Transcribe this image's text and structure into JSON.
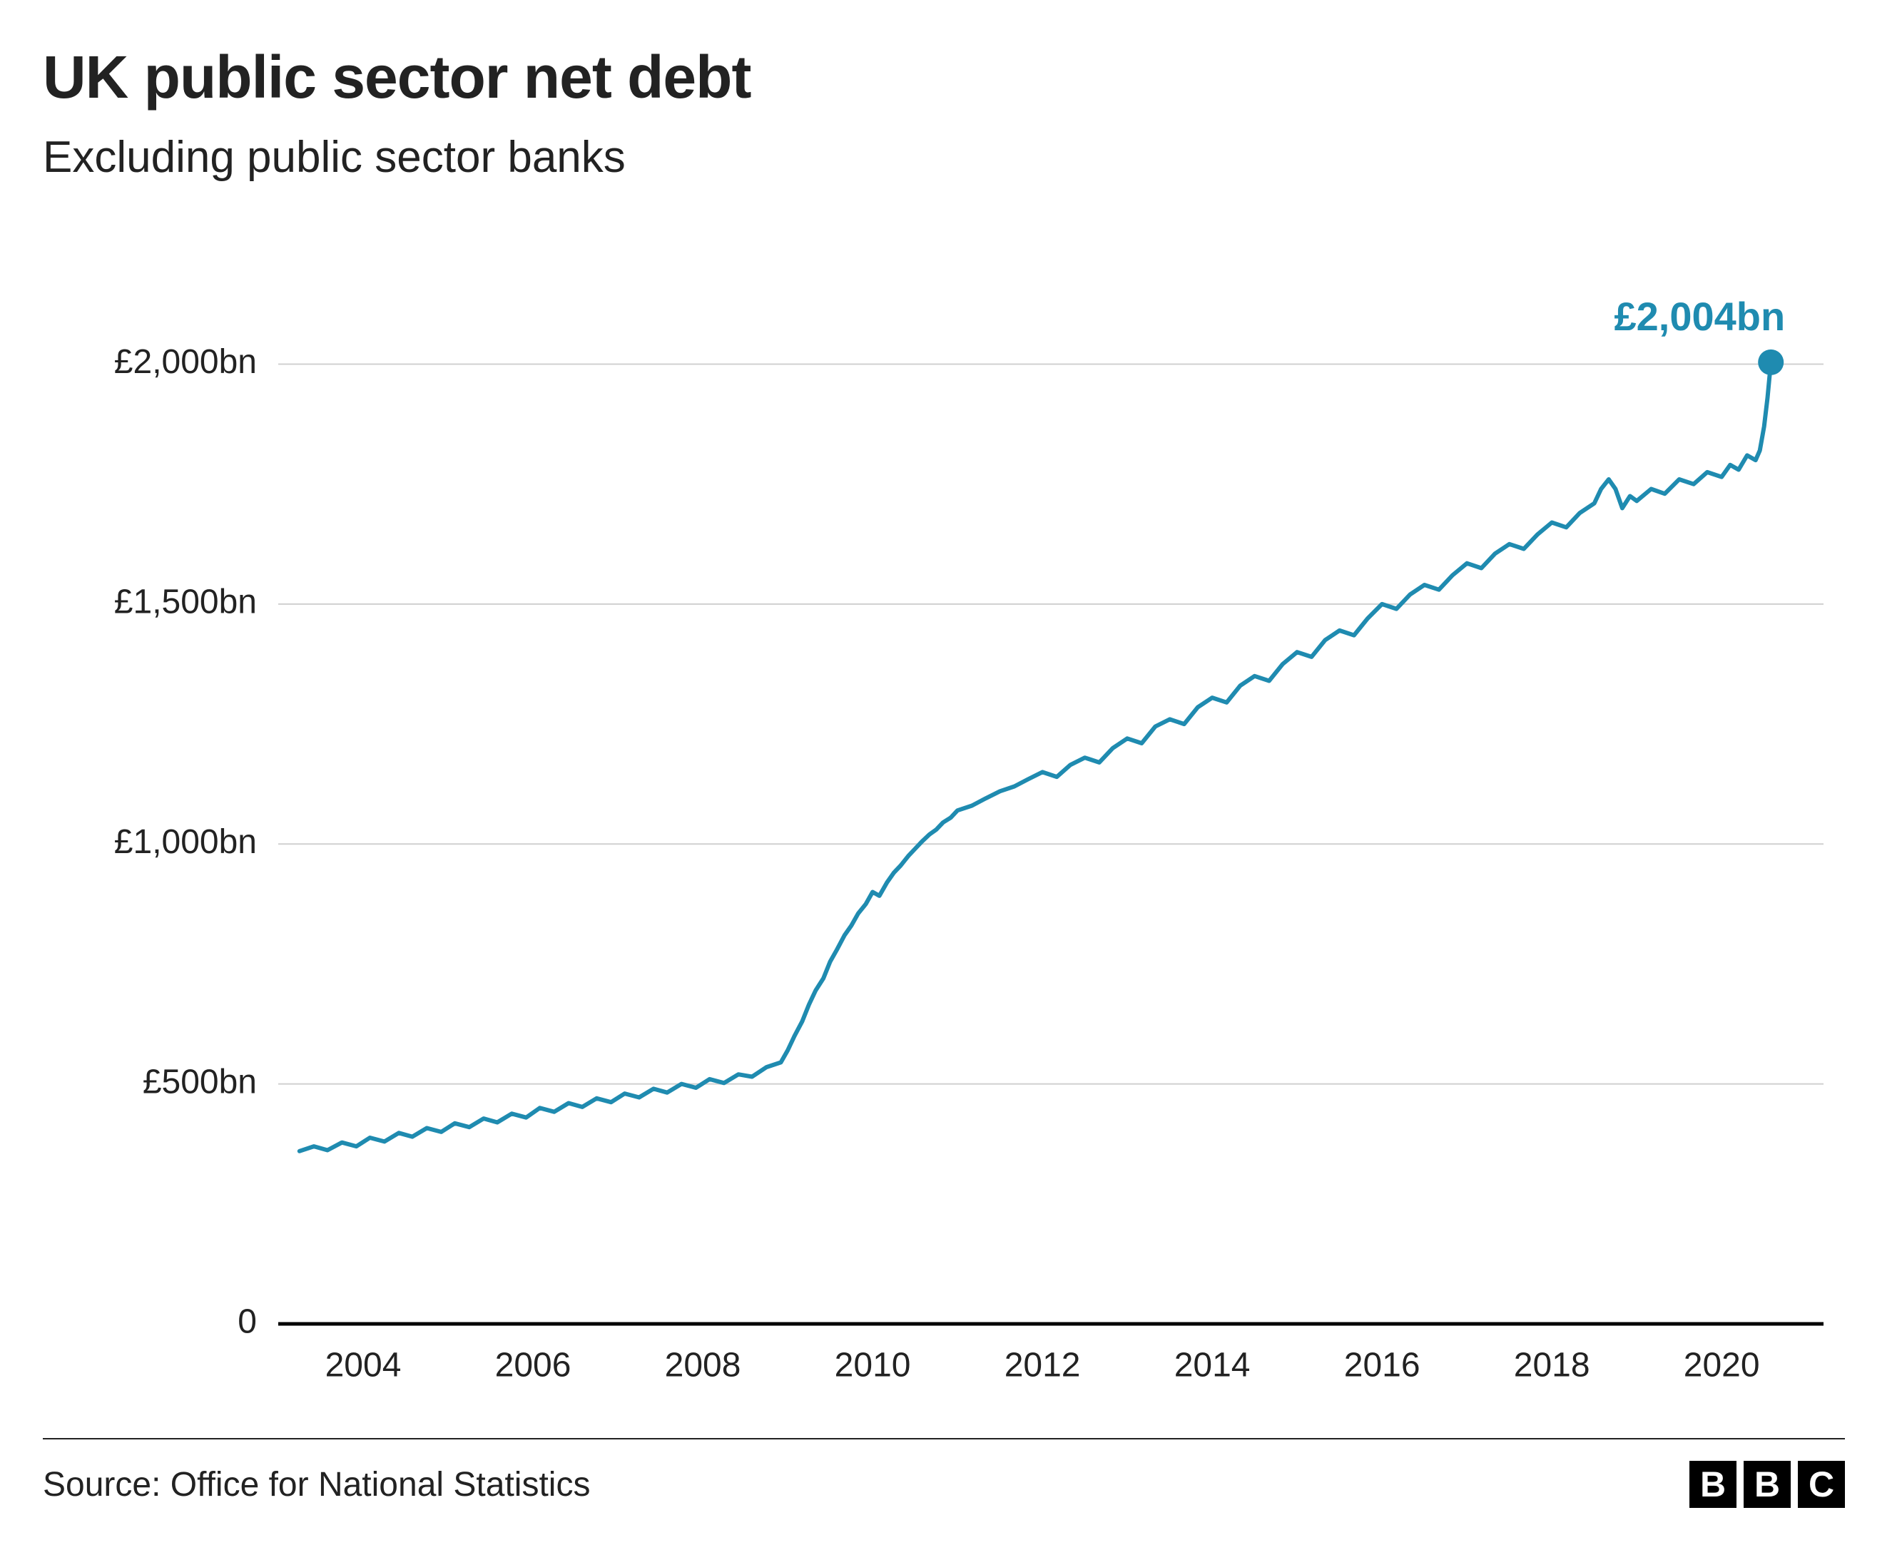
{
  "chart": {
    "type": "line",
    "title": "UK public sector net debt",
    "subtitle": "Excluding public sector banks",
    "title_fontsize": 84,
    "subtitle_fontsize": 62,
    "background_color": "#ffffff",
    "grid_color": "#d0d0d0",
    "axis_color": "#000000",
    "line_color": "#1f8bb0",
    "line_width": 6,
    "marker_color": "#1f8bb0",
    "marker_radius": 18,
    "end_label": "£2,004bn",
    "end_label_color": "#1f8bb0",
    "end_label_fontsize": 56,
    "x": {
      "min": 2003.0,
      "max": 2021.2,
      "ticks": [
        2004,
        2006,
        2008,
        2010,
        2012,
        2014,
        2016,
        2018,
        2020
      ],
      "tick_labels": [
        "2004",
        "2006",
        "2008",
        "2010",
        "2012",
        "2014",
        "2016",
        "2018",
        "2020"
      ],
      "label_fontsize": 48
    },
    "y": {
      "min": 0,
      "max": 2200,
      "ticks": [
        0,
        500,
        1000,
        1500,
        2000
      ],
      "tick_labels": [
        "0",
        "£500bn",
        "£1,000bn",
        "£1,500bn",
        "£2,000bn"
      ],
      "label_fontsize": 48
    },
    "series": [
      {
        "x": 2003.25,
        "y": 360
      },
      {
        "x": 2003.42,
        "y": 370
      },
      {
        "x": 2003.58,
        "y": 362
      },
      {
        "x": 2003.75,
        "y": 378
      },
      {
        "x": 2003.92,
        "y": 370
      },
      {
        "x": 2004.08,
        "y": 388
      },
      {
        "x": 2004.25,
        "y": 380
      },
      {
        "x": 2004.42,
        "y": 398
      },
      {
        "x": 2004.58,
        "y": 390
      },
      {
        "x": 2004.75,
        "y": 408
      },
      {
        "x": 2004.92,
        "y": 400
      },
      {
        "x": 2005.08,
        "y": 418
      },
      {
        "x": 2005.25,
        "y": 410
      },
      {
        "x": 2005.42,
        "y": 428
      },
      {
        "x": 2005.58,
        "y": 420
      },
      {
        "x": 2005.75,
        "y": 438
      },
      {
        "x": 2005.92,
        "y": 430
      },
      {
        "x": 2006.08,
        "y": 450
      },
      {
        "x": 2006.25,
        "y": 442
      },
      {
        "x": 2006.42,
        "y": 460
      },
      {
        "x": 2006.58,
        "y": 452
      },
      {
        "x": 2006.75,
        "y": 470
      },
      {
        "x": 2006.92,
        "y": 462
      },
      {
        "x": 2007.08,
        "y": 480
      },
      {
        "x": 2007.25,
        "y": 472
      },
      {
        "x": 2007.42,
        "y": 490
      },
      {
        "x": 2007.58,
        "y": 482
      },
      {
        "x": 2007.75,
        "y": 500
      },
      {
        "x": 2007.92,
        "y": 492
      },
      {
        "x": 2008.08,
        "y": 510
      },
      {
        "x": 2008.25,
        "y": 502
      },
      {
        "x": 2008.42,
        "y": 520
      },
      {
        "x": 2008.58,
        "y": 515
      },
      {
        "x": 2008.75,
        "y": 535
      },
      {
        "x": 2008.92,
        "y": 545
      },
      {
        "x": 2009.0,
        "y": 570
      },
      {
        "x": 2009.08,
        "y": 600
      },
      {
        "x": 2009.17,
        "y": 630
      },
      {
        "x": 2009.25,
        "y": 665
      },
      {
        "x": 2009.33,
        "y": 695
      },
      {
        "x": 2009.42,
        "y": 720
      },
      {
        "x": 2009.5,
        "y": 755
      },
      {
        "x": 2009.58,
        "y": 780
      },
      {
        "x": 2009.67,
        "y": 810
      },
      {
        "x": 2009.75,
        "y": 830
      },
      {
        "x": 2009.83,
        "y": 855
      },
      {
        "x": 2009.92,
        "y": 875
      },
      {
        "x": 2010.0,
        "y": 900
      },
      {
        "x": 2010.08,
        "y": 892
      },
      {
        "x": 2010.17,
        "y": 920
      },
      {
        "x": 2010.25,
        "y": 940
      },
      {
        "x": 2010.33,
        "y": 955
      },
      {
        "x": 2010.42,
        "y": 975
      },
      {
        "x": 2010.5,
        "y": 990
      },
      {
        "x": 2010.58,
        "y": 1005
      },
      {
        "x": 2010.67,
        "y": 1020
      },
      {
        "x": 2010.75,
        "y": 1030
      },
      {
        "x": 2010.83,
        "y": 1045
      },
      {
        "x": 2010.92,
        "y": 1055
      },
      {
        "x": 2011.0,
        "y": 1070
      },
      {
        "x": 2011.17,
        "y": 1080
      },
      {
        "x": 2011.33,
        "y": 1095
      },
      {
        "x": 2011.5,
        "y": 1110
      },
      {
        "x": 2011.67,
        "y": 1120
      },
      {
        "x": 2011.83,
        "y": 1135
      },
      {
        "x": 2012.0,
        "y": 1150
      },
      {
        "x": 2012.17,
        "y": 1140
      },
      {
        "x": 2012.33,
        "y": 1165
      },
      {
        "x": 2012.5,
        "y": 1180
      },
      {
        "x": 2012.67,
        "y": 1170
      },
      {
        "x": 2012.83,
        "y": 1200
      },
      {
        "x": 2013.0,
        "y": 1220
      },
      {
        "x": 2013.17,
        "y": 1210
      },
      {
        "x": 2013.33,
        "y": 1245
      },
      {
        "x": 2013.5,
        "y": 1260
      },
      {
        "x": 2013.67,
        "y": 1250
      },
      {
        "x": 2013.83,
        "y": 1285
      },
      {
        "x": 2014.0,
        "y": 1305
      },
      {
        "x": 2014.17,
        "y": 1295
      },
      {
        "x": 2014.33,
        "y": 1330
      },
      {
        "x": 2014.5,
        "y": 1350
      },
      {
        "x": 2014.67,
        "y": 1340
      },
      {
        "x": 2014.83,
        "y": 1375
      },
      {
        "x": 2015.0,
        "y": 1400
      },
      {
        "x": 2015.17,
        "y": 1390
      },
      {
        "x": 2015.33,
        "y": 1425
      },
      {
        "x": 2015.5,
        "y": 1445
      },
      {
        "x": 2015.67,
        "y": 1435
      },
      {
        "x": 2015.83,
        "y": 1470
      },
      {
        "x": 2016.0,
        "y": 1500
      },
      {
        "x": 2016.17,
        "y": 1490
      },
      {
        "x": 2016.33,
        "y": 1520
      },
      {
        "x": 2016.5,
        "y": 1540
      },
      {
        "x": 2016.67,
        "y": 1530
      },
      {
        "x": 2016.83,
        "y": 1560
      },
      {
        "x": 2017.0,
        "y": 1585
      },
      {
        "x": 2017.17,
        "y": 1575
      },
      {
        "x": 2017.33,
        "y": 1605
      },
      {
        "x": 2017.5,
        "y": 1625
      },
      {
        "x": 2017.67,
        "y": 1615
      },
      {
        "x": 2017.83,
        "y": 1645
      },
      {
        "x": 2018.0,
        "y": 1670
      },
      {
        "x": 2018.17,
        "y": 1660
      },
      {
        "x": 2018.33,
        "y": 1690
      },
      {
        "x": 2018.5,
        "y": 1710
      },
      {
        "x": 2018.58,
        "y": 1740
      },
      {
        "x": 2018.67,
        "y": 1760
      },
      {
        "x": 2018.75,
        "y": 1740
      },
      {
        "x": 2018.83,
        "y": 1700
      },
      {
        "x": 2018.92,
        "y": 1725
      },
      {
        "x": 2019.0,
        "y": 1715
      },
      {
        "x": 2019.17,
        "y": 1740
      },
      {
        "x": 2019.33,
        "y": 1730
      },
      {
        "x": 2019.5,
        "y": 1760
      },
      {
        "x": 2019.67,
        "y": 1750
      },
      {
        "x": 2019.83,
        "y": 1775
      },
      {
        "x": 2020.0,
        "y": 1765
      },
      {
        "x": 2020.1,
        "y": 1790
      },
      {
        "x": 2020.2,
        "y": 1780
      },
      {
        "x": 2020.3,
        "y": 1810
      },
      {
        "x": 2020.4,
        "y": 1800
      },
      {
        "x": 2020.45,
        "y": 1820
      },
      {
        "x": 2020.5,
        "y": 1870
      },
      {
        "x": 2020.54,
        "y": 1930
      },
      {
        "x": 2020.58,
        "y": 2004
      }
    ]
  },
  "footer": {
    "source_text": "Source: Office for National Statistics",
    "source_fontsize": 48,
    "divider_color": "#222222",
    "logo_letters": [
      "B",
      "B",
      "C"
    ],
    "logo_bg": "#000000",
    "logo_fg": "#ffffff"
  }
}
